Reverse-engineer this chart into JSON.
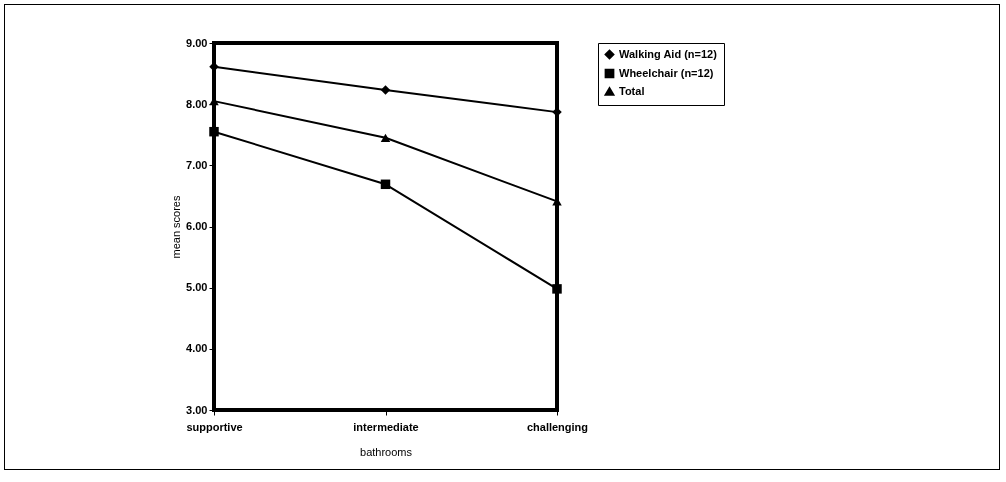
{
  "chart_data": {
    "type": "line",
    "xlabel": "bathrooms",
    "ylabel": "mean scores",
    "categories": [
      "supportive",
      "intermediate",
      "challenging"
    ],
    "series": [
      {
        "name": "Walking Aid (n=12)",
        "color": "#000000",
        "marker": "diamond",
        "values": [
          8.61,
          8.23,
          7.87
        ]
      },
      {
        "name": "Wheelchair (n=12)",
        "color": "#000000",
        "marker": "square",
        "values": [
          7.55,
          6.69,
          4.98
        ]
      },
      {
        "name": "Total",
        "color": "#000000",
        "marker": "triangle",
        "values": [
          8.05,
          7.45,
          6.41
        ]
      }
    ],
    "ylim": [
      3,
      9
    ],
    "yticks": [
      {
        "value": 3,
        "label": "3.00"
      },
      {
        "value": 4,
        "label": "4.00"
      },
      {
        "value": 5,
        "label": "5.00"
      },
      {
        "value": 6,
        "label": "6.00"
      },
      {
        "value": 7,
        "label": "7.00"
      },
      {
        "value": 8,
        "label": "8.00"
      },
      {
        "value": 9,
        "label": "9.00"
      }
    ],
    "grid": false,
    "legend": "right"
  }
}
